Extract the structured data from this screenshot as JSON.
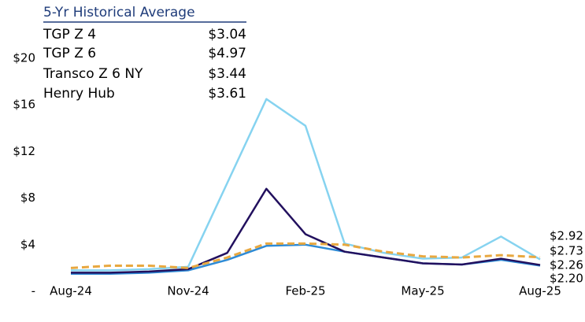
{
  "chart_data": {
    "type": "line",
    "legend_title": "5-Yr Historical Average",
    "categories": [
      "Aug-24",
      null,
      null,
      "Nov-24",
      null,
      null,
      "Feb-25",
      null,
      null,
      "May-25",
      null,
      null,
      "Aug-25"
    ],
    "ylim": [
      0,
      20
    ],
    "yticks": [
      {
        "value": 0,
        "label": "-"
      },
      {
        "value": 4,
        "label": "$4"
      },
      {
        "value": 8,
        "label": "$8"
      },
      {
        "value": 12,
        "label": "$12"
      },
      {
        "value": 16,
        "label": "$16"
      },
      {
        "value": 20,
        "label": "$20"
      }
    ],
    "grid": false,
    "series": [
      {
        "name": "TGP Z 4",
        "average": "$3.04",
        "color": "#2e8bd6",
        "dashed": false,
        "values": [
          1.5,
          1.5,
          1.6,
          1.8,
          2.7,
          3.9,
          4.0,
          3.4,
          2.9,
          2.4,
          2.3,
          2.7,
          2.2
        ],
        "value_labels": [
          null,
          null,
          null,
          null,
          null,
          null,
          null,
          null,
          null,
          null,
          null,
          null,
          "$2.20"
        ]
      },
      {
        "name": "TGP Z 6",
        "average": "$4.97",
        "color": "#86d3f0",
        "dashed": false,
        "values": [
          1.8,
          1.8,
          1.9,
          2.1,
          9.3,
          16.5,
          14.2,
          4.1,
          3.3,
          2.8,
          2.9,
          4.7,
          2.73
        ],
        "value_labels": [
          null,
          null,
          null,
          null,
          null,
          null,
          null,
          null,
          null,
          null,
          null,
          null,
          "$2.73"
        ]
      },
      {
        "name": "Transco Z 6 NY",
        "average": "$3.44",
        "color": "#22105e",
        "dashed": false,
        "values": [
          1.6,
          1.6,
          1.7,
          1.9,
          3.3,
          8.8,
          4.9,
          3.4,
          2.9,
          2.4,
          2.3,
          2.8,
          2.26
        ],
        "value_labels": [
          null,
          null,
          null,
          null,
          null,
          null,
          null,
          null,
          null,
          null,
          null,
          null,
          "$2.26"
        ]
      },
      {
        "name": "Henry Hub",
        "average": "$3.61",
        "color": "#e8a840",
        "dashed": true,
        "values": [
          2.0,
          2.2,
          2.2,
          2.0,
          2.9,
          4.1,
          4.1,
          4.0,
          3.4,
          3.0,
          2.9,
          3.1,
          2.92
        ],
        "value_labels": [
          null,
          null,
          null,
          null,
          null,
          null,
          null,
          null,
          null,
          null,
          null,
          null,
          "$2.92"
        ]
      }
    ]
  }
}
